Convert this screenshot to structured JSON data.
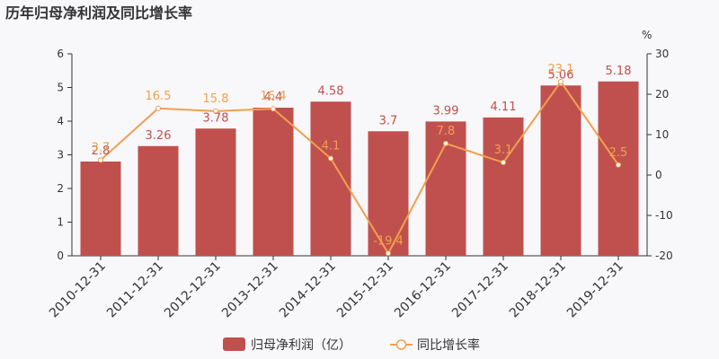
{
  "chart_data": {
    "type": "bar",
    "title": "历年归母净利润及同比增长率",
    "categories": [
      "2010-12-31",
      "2011-12-31",
      "2012-12-31",
      "2013-12-31",
      "2014-12-31",
      "2015-12-31",
      "2016-12-31",
      "2017-12-31",
      "2018-12-31",
      "2019-12-31"
    ],
    "series": [
      {
        "name": "归母净利润（亿）",
        "type": "bar",
        "axis": "left",
        "color": "#c0504d",
        "values": [
          2.8,
          3.26,
          3.78,
          4.4,
          4.58,
          3.7,
          3.99,
          4.11,
          5.06,
          5.18
        ],
        "labels": [
          "2.8",
          "3.26",
          "3.78",
          "4.4",
          "4.58",
          "3.7",
          "3.99",
          "4.11",
          "5.06",
          "5.18"
        ]
      },
      {
        "name": "同比增长率",
        "type": "line",
        "axis": "right",
        "color": "#f0a050",
        "values": [
          3.7,
          16.5,
          15.8,
          16.4,
          4.1,
          -19.4,
          7.8,
          3.1,
          23.1,
          2.5
        ],
        "labels": [
          "3.7",
          "16.5",
          "15.8",
          "16.4",
          "4.1",
          "-19.4",
          "7.8",
          "3.1",
          "23.1",
          "2.5"
        ]
      }
    ],
    "y_left": {
      "ylim": [
        0,
        6
      ],
      "ticks": [
        "0",
        "1",
        "2",
        "3",
        "4",
        "5",
        "6"
      ]
    },
    "y_right": {
      "unit": "%",
      "ylim": [
        -20,
        30
      ],
      "ticks": [
        "-20",
        "-10",
        "0",
        "10",
        "20",
        "30"
      ]
    },
    "grid": false,
    "legend": "bottom-center"
  }
}
